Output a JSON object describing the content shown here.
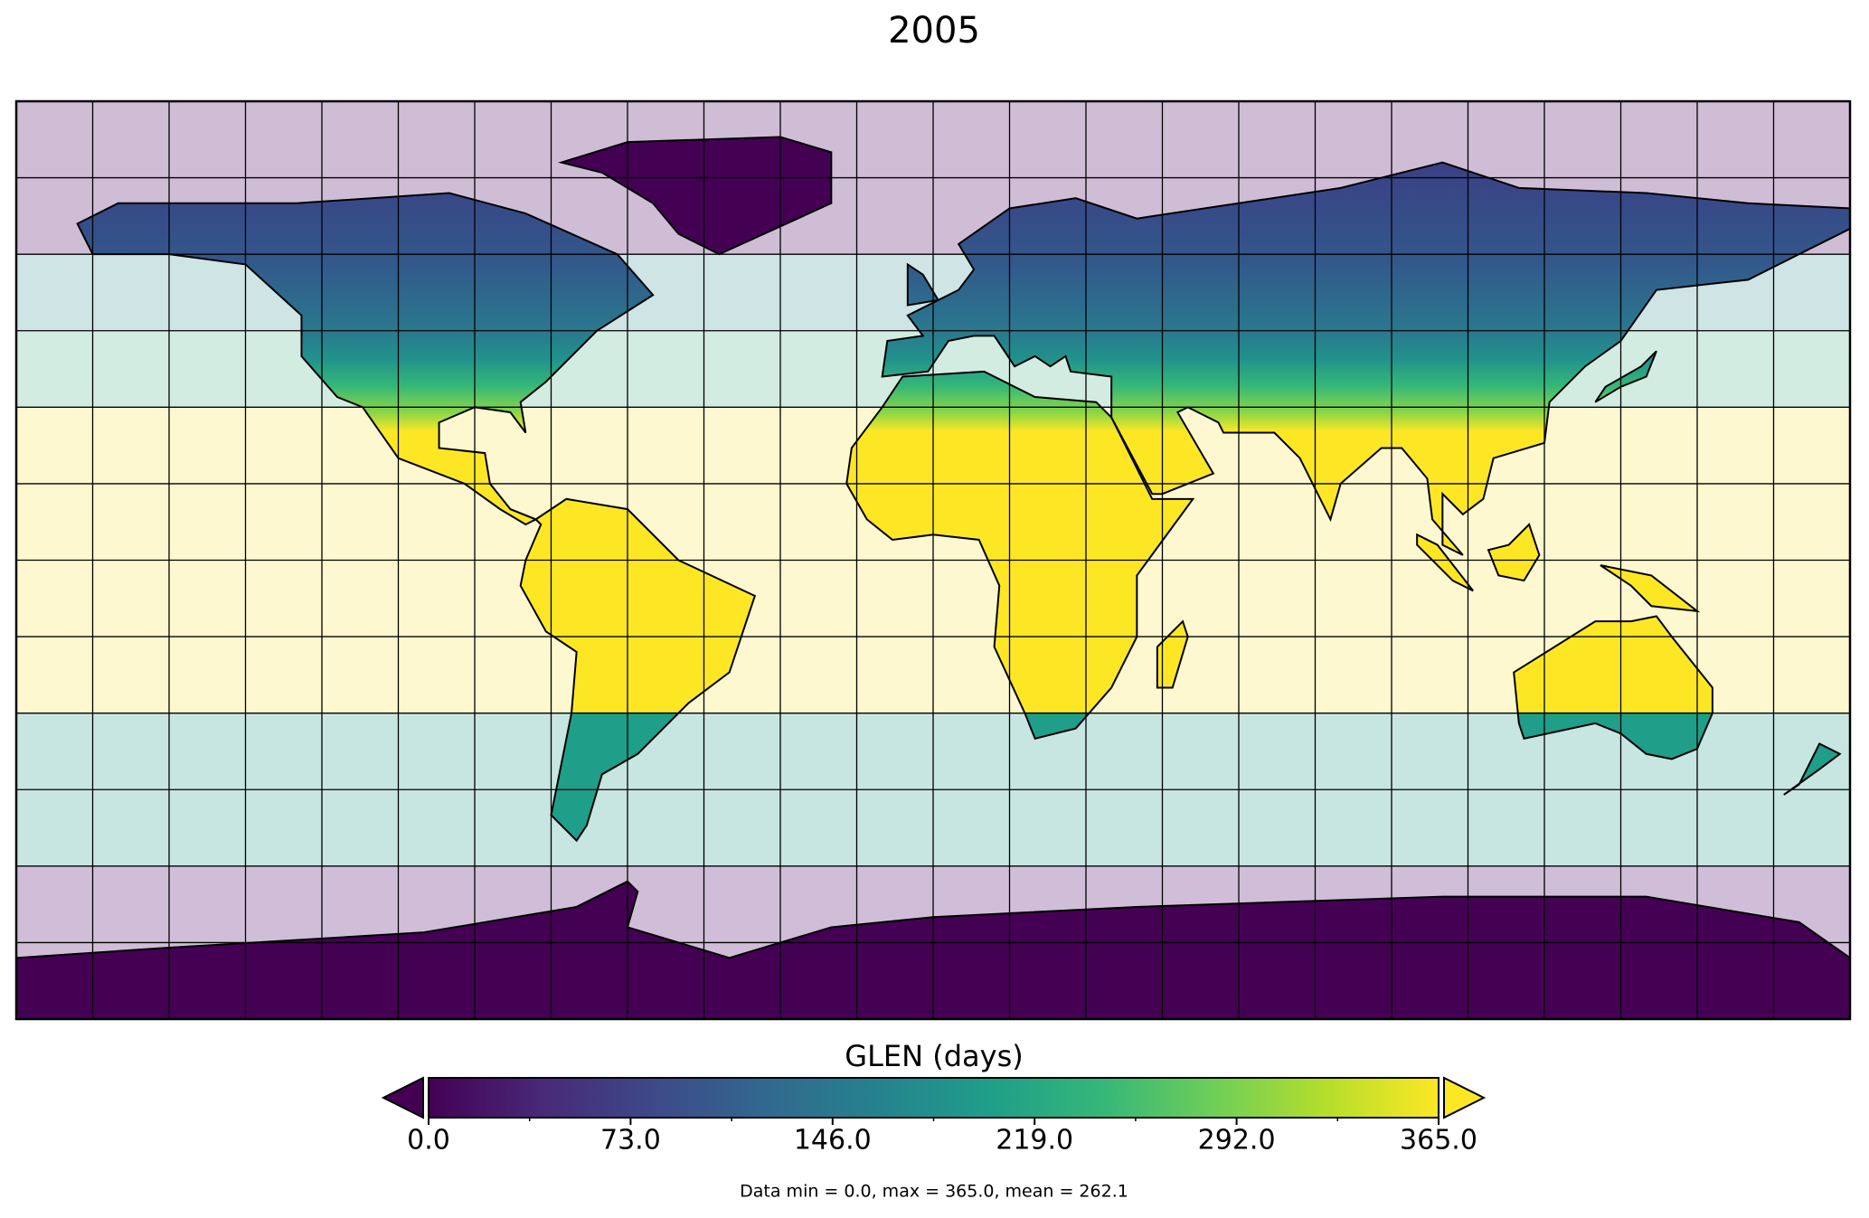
{
  "title": "2005",
  "colorbar": {
    "label": "GLEN (days)",
    "colormap": "viridis",
    "lim": [
      0,
      365
    ],
    "ticks": [
      {
        "value": 0,
        "label": "0.0"
      },
      {
        "value": 73,
        "label": "73.0"
      },
      {
        "value": 146,
        "label": "146.0"
      },
      {
        "value": 219,
        "label": "219.0"
      },
      {
        "value": 292,
        "label": "292.0"
      },
      {
        "value": 365,
        "label": "365.0"
      }
    ]
  },
  "footer": "Data min = 0.0, max = 365.0, mean = 262.1"
}
